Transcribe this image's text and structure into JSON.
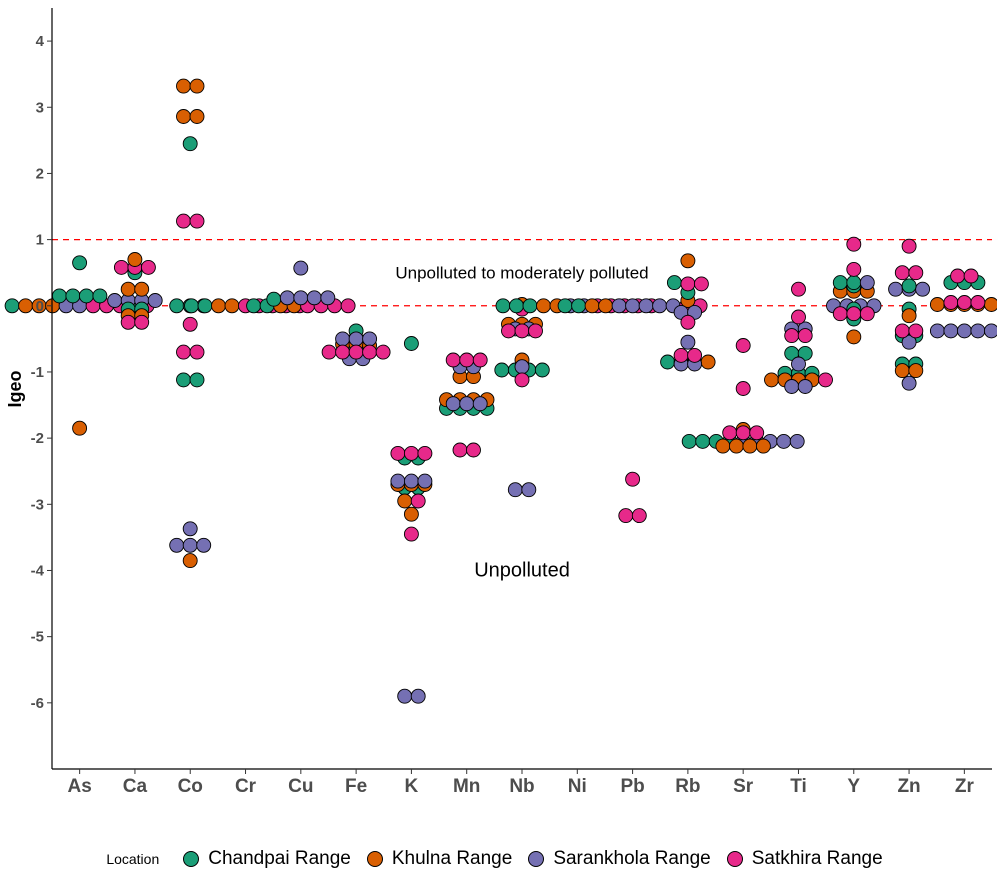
{
  "chart_data": {
    "type": "scatter",
    "title": "",
    "xlabel": "",
    "ylabel": "Igeo",
    "ylim": [
      -7,
      4.5
    ],
    "yticks": [
      4,
      3,
      2,
      1,
      0,
      -1,
      -2,
      -3,
      -4,
      -5,
      -6
    ],
    "grid": false,
    "legend_position": "bottom",
    "legend_title": "Location",
    "categories": [
      "As",
      "Ca",
      "Co",
      "Cr",
      "Cu",
      "Fe",
      "K",
      "Mn",
      "Nb",
      "Ni",
      "Pb",
      "Rb",
      "Sr",
      "Ti",
      "Y",
      "Zn",
      "Zr"
    ],
    "reference_lines": [
      {
        "y": 1,
        "style": "dashed",
        "color": "#ff0000"
      },
      {
        "y": 0,
        "style": "dashed",
        "color": "#ff0000"
      }
    ],
    "annotations": [
      {
        "text": "Unpolluted to moderately polluted",
        "x": 8.5,
        "y": 0.5
      },
      {
        "text": "Unpolluted",
        "x": 8.5,
        "y": -4
      }
    ],
    "series": [
      {
        "name": "Chandpai Range",
        "color": "#1b9e77",
        "points": [
          [
            "As",
            0.15
          ],
          [
            "As",
            0.15
          ],
          [
            "As",
            0.15
          ],
          [
            "As",
            0.15
          ],
          [
            "As",
            0.65
          ],
          [
            "As",
            0
          ],
          [
            "Ca",
            0.5
          ],
          [
            "Ca",
            -0.05
          ],
          [
            "Ca",
            -0.05
          ],
          [
            "Ca",
            0
          ],
          [
            "Co",
            2.45
          ],
          [
            "Co",
            0
          ],
          [
            "Co",
            0
          ],
          [
            "Co",
            -1.12
          ],
          [
            "Co",
            -1.12
          ],
          [
            "Cr",
            0
          ],
          [
            "Cr",
            0
          ],
          [
            "Cu",
            0.1
          ],
          [
            "Cu",
            0
          ],
          [
            "Cu",
            0
          ],
          [
            "Fe",
            -0.38
          ],
          [
            "Fe",
            -0.55
          ],
          [
            "Fe",
            -0.55
          ],
          [
            "K",
            -0.57
          ],
          [
            "K",
            -2.3
          ],
          [
            "K",
            -2.3
          ],
          [
            "K",
            -2.75
          ],
          [
            "K",
            -2.75
          ],
          [
            "Mn",
            -1.45
          ],
          [
            "Mn",
            -1.45
          ],
          [
            "Mn",
            -1.55
          ],
          [
            "Mn",
            -1.55
          ],
          [
            "Mn",
            -1.55
          ],
          [
            "Mn",
            -1.55
          ],
          [
            "Nb",
            -0.97
          ],
          [
            "Nb",
            -0.97
          ],
          [
            "Nb",
            -0.97
          ],
          [
            "Nb",
            -0.97
          ],
          [
            "Ni",
            0
          ],
          [
            "Ni",
            0
          ],
          [
            "Ni",
            0
          ],
          [
            "Pb",
            0
          ],
          [
            "Pb",
            0
          ],
          [
            "Rb",
            0.35
          ],
          [
            "Rb",
            0.2
          ],
          [
            "Rb",
            -0.85
          ],
          [
            "Rb",
            -0.85
          ],
          [
            "Sr",
            -2.05
          ],
          [
            "Sr",
            -2.05
          ],
          [
            "Sr",
            -2.05
          ],
          [
            "Sr",
            -2.05
          ],
          [
            "Ti",
            -0.72
          ],
          [
            "Ti",
            -0.72
          ],
          [
            "Ti",
            -1.02
          ],
          [
            "Ti",
            -1.02
          ],
          [
            "Ti",
            -1.02
          ],
          [
            "Y",
            0.35
          ],
          [
            "Y",
            0.35
          ],
          [
            "Y",
            0.3
          ],
          [
            "Y",
            -0.05
          ],
          [
            "Y",
            -0.2
          ],
          [
            "Zn",
            0.3
          ],
          [
            "Zn",
            -0.05
          ],
          [
            "Zn",
            -0.45
          ],
          [
            "Zn",
            -0.45
          ],
          [
            "Zn",
            -0.88
          ],
          [
            "Zn",
            -0.88
          ],
          [
            "Zr",
            0.35
          ],
          [
            "Zr",
            0.35
          ],
          [
            "Zr",
            0.35
          ]
        ]
      },
      {
        "name": "Khulna Range",
        "color": "#d95f02",
        "points": [
          [
            "As",
            0
          ],
          [
            "As",
            0
          ],
          [
            "As",
            0
          ],
          [
            "As",
            -1.85
          ],
          [
            "Ca",
            0.7
          ],
          [
            "Ca",
            0.25
          ],
          [
            "Ca",
            0.25
          ],
          [
            "Ca",
            -0.15
          ],
          [
            "Ca",
            -0.15
          ],
          [
            "Co",
            3.32
          ],
          [
            "Co",
            3.32
          ],
          [
            "Co",
            2.86
          ],
          [
            "Co",
            2.86
          ],
          [
            "Co",
            -3.85
          ],
          [
            "Cr",
            0
          ],
          [
            "Cr",
            0
          ],
          [
            "Cu",
            0
          ],
          [
            "Cu",
            0
          ],
          [
            "Fe",
            -0.58
          ],
          [
            "Fe",
            -0.58
          ],
          [
            "Fe",
            -0.6
          ],
          [
            "K",
            -2.7
          ],
          [
            "K",
            -2.7
          ],
          [
            "K",
            -2.7
          ],
          [
            "K",
            -2.95
          ],
          [
            "K",
            -3.15
          ],
          [
            "Mn",
            -1.07
          ],
          [
            "Mn",
            -1.07
          ],
          [
            "Mn",
            -1.42
          ],
          [
            "Mn",
            -1.42
          ],
          [
            "Mn",
            -1.42
          ],
          [
            "Mn",
            -1.42
          ],
          [
            "Nb",
            0.02
          ],
          [
            "Nb",
            -0.28
          ],
          [
            "Nb",
            -0.28
          ],
          [
            "Nb",
            -0.28
          ],
          [
            "Nb",
            -0.82
          ],
          [
            "Ni",
            0
          ],
          [
            "Ni",
            0
          ],
          [
            "Pb",
            0
          ],
          [
            "Pb",
            0
          ],
          [
            "Rb",
            0.68
          ],
          [
            "Rb",
            0.08
          ],
          [
            "Rb",
            -0.85
          ],
          [
            "Rb",
            -0.85
          ],
          [
            "Sr",
            -1.87
          ],
          [
            "Sr",
            -2.12
          ],
          [
            "Sr",
            -2.12
          ],
          [
            "Sr",
            -2.12
          ],
          [
            "Sr",
            -2.12
          ],
          [
            "Ti",
            -1.12
          ],
          [
            "Ti",
            -1.12
          ],
          [
            "Ti",
            -1.12
          ],
          [
            "Ti",
            -1.12
          ],
          [
            "Y",
            0.22
          ],
          [
            "Y",
            0.22
          ],
          [
            "Y",
            0.22
          ],
          [
            "Y",
            -0.47
          ],
          [
            "Zn",
            -0.15
          ],
          [
            "Zn",
            -0.98
          ],
          [
            "Zn",
            -0.98
          ],
          [
            "Zr",
            0.02
          ],
          [
            "Zr",
            0.02
          ],
          [
            "Zr",
            0.02
          ],
          [
            "Zr",
            0.02
          ],
          [
            "Zr",
            0.02
          ]
        ]
      },
      {
        "name": "Sarankhola Range",
        "color": "#7570b3",
        "points": [
          [
            "As",
            0
          ],
          [
            "As",
            0
          ],
          [
            "Ca",
            0.08
          ],
          [
            "Ca",
            0.08
          ],
          [
            "Ca",
            0.08
          ],
          [
            "Ca",
            0.08
          ],
          [
            "Co",
            0
          ],
          [
            "Co",
            -3.37
          ],
          [
            "Co",
            -3.62
          ],
          [
            "Co",
            -3.62
          ],
          [
            "Co",
            -3.62
          ],
          [
            "Cu",
            0.57
          ],
          [
            "Cu",
            0.12
          ],
          [
            "Cu",
            0.12
          ],
          [
            "Cu",
            0.12
          ],
          [
            "Cu",
            0.12
          ],
          [
            "Fe",
            -0.5
          ],
          [
            "Fe",
            -0.5
          ],
          [
            "Fe",
            -0.5
          ],
          [
            "Fe",
            -0.8
          ],
          [
            "Fe",
            -0.8
          ],
          [
            "K",
            -2.65
          ],
          [
            "K",
            -2.65
          ],
          [
            "K",
            -2.65
          ],
          [
            "K",
            -5.9
          ],
          [
            "K",
            -5.9
          ],
          [
            "Mn",
            -0.92
          ],
          [
            "Mn",
            -0.92
          ],
          [
            "Mn",
            -1.48
          ],
          [
            "Mn",
            -1.48
          ],
          [
            "Mn",
            -1.48
          ],
          [
            "Nb",
            -0.35
          ],
          [
            "Nb",
            -0.35
          ],
          [
            "Nb",
            -0.92
          ],
          [
            "Nb",
            -2.78
          ],
          [
            "Nb",
            -2.78
          ],
          [
            "Ni",
            0
          ],
          [
            "Ni",
            0
          ],
          [
            "Pb",
            0
          ],
          [
            "Pb",
            0
          ],
          [
            "Pb",
            0
          ],
          [
            "Pb",
            0
          ],
          [
            "Pb",
            0
          ],
          [
            "Rb",
            -0.1
          ],
          [
            "Rb",
            -0.1
          ],
          [
            "Rb",
            -0.55
          ],
          [
            "Rb",
            -0.88
          ],
          [
            "Rb",
            -0.88
          ],
          [
            "Sr",
            -2.05
          ],
          [
            "Sr",
            -2.05
          ],
          [
            "Sr",
            -2.05
          ],
          [
            "Sr",
            -2.05
          ],
          [
            "Sr",
            -2.05
          ],
          [
            "Ti",
            -0.35
          ],
          [
            "Ti",
            -0.35
          ],
          [
            "Ti",
            -0.88
          ],
          [
            "Ti",
            -1.22
          ],
          [
            "Ti",
            -1.22
          ],
          [
            "Y",
            0.35
          ],
          [
            "Y",
            0
          ],
          [
            "Y",
            0
          ],
          [
            "Y",
            0
          ],
          [
            "Y",
            0
          ],
          [
            "Zn",
            0.25
          ],
          [
            "Zn",
            0.25
          ],
          [
            "Zn",
            0.25
          ],
          [
            "Zn",
            -0.55
          ],
          [
            "Zn",
            -1.17
          ],
          [
            "Zr",
            -0.38
          ],
          [
            "Zr",
            -0.38
          ],
          [
            "Zr",
            -0.38
          ],
          [
            "Zr",
            -0.38
          ],
          [
            "Zr",
            -0.38
          ]
        ]
      },
      {
        "name": "Satkhira Range",
        "color": "#e7298a",
        "points": [
          [
            "As",
            0
          ],
          [
            "As",
            0
          ],
          [
            "As",
            0
          ],
          [
            "As",
            0
          ],
          [
            "As",
            0
          ],
          [
            "Ca",
            0.58
          ],
          [
            "Ca",
            0.58
          ],
          [
            "Ca",
            0.58
          ],
          [
            "Ca",
            -0.25
          ],
          [
            "Ca",
            -0.25
          ],
          [
            "Co",
            1.28
          ],
          [
            "Co",
            1.28
          ],
          [
            "Co",
            -0.28
          ],
          [
            "Co",
            -0.7
          ],
          [
            "Co",
            -0.7
          ],
          [
            "Cr",
            0
          ],
          [
            "Cr",
            0
          ],
          [
            "Cr",
            0
          ],
          [
            "Cr",
            0
          ],
          [
            "Cr",
            0
          ],
          [
            "Cu",
            0
          ],
          [
            "Cu",
            0
          ],
          [
            "Cu",
            0
          ],
          [
            "Cu",
            0
          ],
          [
            "Fe",
            -0.7
          ],
          [
            "Fe",
            -0.7
          ],
          [
            "Fe",
            -0.7
          ],
          [
            "Fe",
            -0.7
          ],
          [
            "Fe",
            -0.7
          ],
          [
            "K",
            -2.23
          ],
          [
            "K",
            -2.23
          ],
          [
            "K",
            -2.23
          ],
          [
            "K",
            -2.95
          ],
          [
            "K",
            -3.45
          ],
          [
            "Mn",
            -0.82
          ],
          [
            "Mn",
            -0.82
          ],
          [
            "Mn",
            -0.82
          ],
          [
            "Mn",
            -2.18
          ],
          [
            "Mn",
            -2.18
          ],
          [
            "Nb",
            -0.05
          ],
          [
            "Nb",
            -0.38
          ],
          [
            "Nb",
            -0.38
          ],
          [
            "Nb",
            -0.38
          ],
          [
            "Nb",
            -1.12
          ],
          [
            "Ni",
            0
          ],
          [
            "Ni",
            0
          ],
          [
            "Ni",
            0
          ],
          [
            "Ni",
            0
          ],
          [
            "Ni",
            0
          ],
          [
            "Pb",
            0
          ],
          [
            "Pb",
            0
          ],
          [
            "Pb",
            -2.62
          ],
          [
            "Pb",
            -3.17
          ],
          [
            "Pb",
            -3.17
          ],
          [
            "Rb",
            0.33
          ],
          [
            "Rb",
            0.33
          ],
          [
            "Rb",
            -0.25
          ],
          [
            "Rb",
            -0.75
          ],
          [
            "Rb",
            -0.75
          ],
          [
            "Sr",
            -0.6
          ],
          [
            "Sr",
            -1.25
          ],
          [
            "Sr",
            -1.92
          ],
          [
            "Sr",
            -1.92
          ],
          [
            "Sr",
            -1.92
          ],
          [
            "Ti",
            0.25
          ],
          [
            "Ti",
            -0.17
          ],
          [
            "Ti",
            -0.45
          ],
          [
            "Ti",
            -0.45
          ],
          [
            "Ti",
            -1.12
          ],
          [
            "Y",
            0.93
          ],
          [
            "Y",
            0.55
          ],
          [
            "Y",
            -0.12
          ],
          [
            "Y",
            -0.12
          ],
          [
            "Y",
            -0.12
          ],
          [
            "Zn",
            0.9
          ],
          [
            "Zn",
            0.5
          ],
          [
            "Zn",
            0.5
          ],
          [
            "Zn",
            -0.38
          ],
          [
            "Zn",
            -0.38
          ],
          [
            "Zr",
            0.45
          ],
          [
            "Zr",
            0.45
          ],
          [
            "Zr",
            0.05
          ],
          [
            "Zr",
            0.05
          ],
          [
            "Zr",
            0.05
          ]
        ]
      }
    ]
  }
}
